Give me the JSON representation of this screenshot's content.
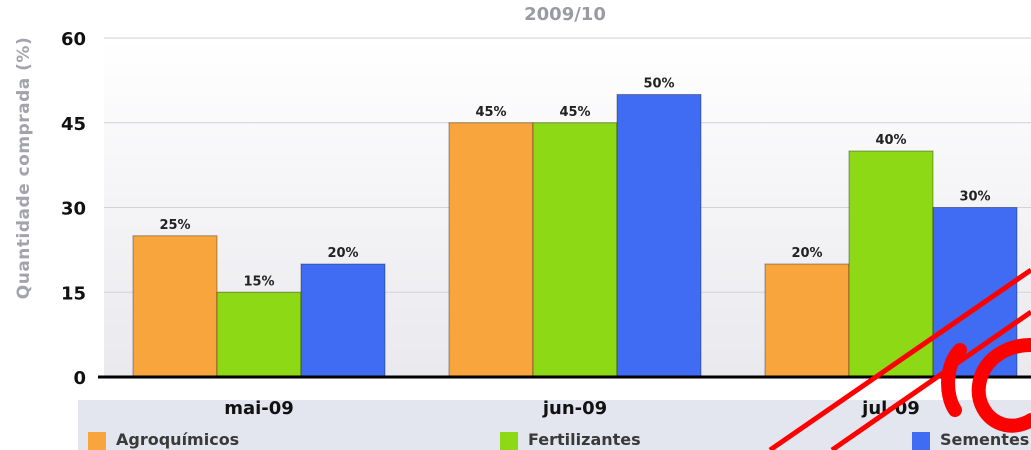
{
  "colors": {
    "Agroquímicos": "#f8a53e",
    "Fertilizantes": "#8ed916",
    "Sementes": "#3f6cf2",
    "grid": "#d2d2d8",
    "axis": "#000000",
    "annotation": "#ff0000"
  },
  "chart_data": {
    "type": "bar",
    "title": "2009/10",
    "xlabel": "",
    "ylabel": "Quantidade comprada (%)",
    "ylim": [
      0,
      60
    ],
    "yticks": [
      0,
      15,
      30,
      45,
      60
    ],
    "categories": [
      "mai-09",
      "jun-09",
      "jul-09"
    ],
    "series": [
      {
        "name": "Agroquímicos",
        "values": [
          25,
          45,
          20
        ],
        "labels": [
          "25%",
          "45%",
          "20%"
        ]
      },
      {
        "name": "Fertilizantes",
        "values": [
          15,
          45,
          40
        ],
        "labels": [
          "15%",
          "45%",
          "40%"
        ]
      },
      {
        "name": "Sementes",
        "values": [
          20,
          50,
          30
        ],
        "labels": [
          "20%",
          "50%",
          "30%"
        ]
      }
    ],
    "grid": true,
    "legend_position": "bottom"
  },
  "legend": {
    "items": [
      {
        "label": "Agroquímicos"
      },
      {
        "label": "Fertilizantes"
      },
      {
        "label": "Sementes"
      }
    ]
  }
}
